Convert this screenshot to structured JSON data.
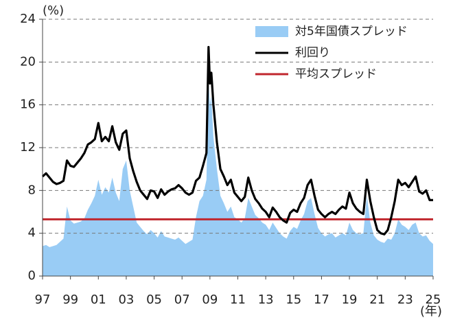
{
  "chart_data": {
    "type": "area_line",
    "y_unit": "(%)",
    "x_unit": "(年)",
    "x": [
      1997,
      1997.25,
      1997.5,
      1997.75,
      1998,
      1998.25,
      1998.5,
      1998.75,
      1999,
      1999.25,
      1999.5,
      1999.75,
      2000,
      2000.25,
      2000.5,
      2000.75,
      2001,
      2001.25,
      2001.5,
      2001.75,
      2002,
      2002.25,
      2002.5,
      2002.75,
      2003,
      2003.25,
      2003.5,
      2003.75,
      2004,
      2004.25,
      2004.5,
      2004.75,
      2005,
      2005.25,
      2005.5,
      2005.75,
      2006,
      2006.25,
      2006.5,
      2006.75,
      2007,
      2007.25,
      2007.5,
      2007.75,
      2008,
      2008.25,
      2008.5,
      2008.75,
      2008.9,
      2009,
      2009.1,
      2009.25,
      2009.5,
      2009.75,
      2010,
      2010.25,
      2010.5,
      2010.75,
      2011,
      2011.25,
      2011.5,
      2011.75,
      2012,
      2012.25,
      2012.5,
      2012.75,
      2013,
      2013.25,
      2013.5,
      2013.75,
      2014,
      2014.25,
      2014.5,
      2014.75,
      2015,
      2015.25,
      2015.5,
      2015.75,
      2016,
      2016.25,
      2016.5,
      2016.75,
      2017,
      2017.25,
      2017.5,
      2017.75,
      2018,
      2018.25,
      2018.5,
      2018.75,
      2019,
      2019.25,
      2019.5,
      2019.75,
      2020,
      2020.25,
      2020.5,
      2020.75,
      2021,
      2021.25,
      2021.5,
      2021.75,
      2022,
      2022.25,
      2022.5,
      2022.75,
      2023,
      2023.25,
      2023.5,
      2023.75,
      2024,
      2024.25,
      2024.5,
      2024.75,
      2025
    ],
    "series": [
      {
        "name": "対5年国債スプレッド",
        "kind": "area",
        "color": "#99ccf5",
        "values": [
          2.8,
          2.9,
          2.7,
          2.8,
          2.9,
          3.2,
          3.5,
          6.5,
          5.2,
          4.9,
          5.0,
          5.1,
          5.4,
          6.2,
          6.8,
          7.5,
          9.0,
          7.6,
          8.3,
          7.8,
          9.2,
          7.8,
          7.0,
          10.0,
          10.8,
          8.0,
          6.5,
          5.0,
          4.6,
          4.2,
          3.9,
          4.3,
          4.0,
          3.6,
          4.2,
          3.7,
          3.6,
          3.5,
          3.4,
          3.6,
          3.3,
          3.0,
          3.2,
          3.4,
          5.5,
          7.0,
          7.5,
          9.0,
          18.1,
          16.0,
          16.8,
          13.0,
          10.0,
          7.5,
          6.8,
          6.0,
          6.5,
          5.5,
          5.3,
          5.0,
          5.4,
          7.3,
          6.5,
          5.7,
          5.4,
          5.0,
          4.8,
          4.3,
          5.0,
          4.5,
          4.0,
          3.7,
          3.5,
          4.2,
          4.6,
          4.4,
          5.2,
          5.8,
          7.0,
          7.3,
          5.8,
          4.5,
          4.0,
          3.7,
          3.9,
          4.0,
          3.6,
          3.8,
          4.0,
          3.8,
          5.0,
          4.3,
          4.0,
          3.9,
          4.0,
          7.5,
          5.0,
          3.8,
          3.4,
          3.2,
          3.1,
          3.5,
          3.4,
          4.0,
          5.3,
          4.8,
          4.6,
          4.3,
          4.8,
          5.0,
          4.0,
          3.7,
          3.8,
          3.3,
          3.0
        ]
      },
      {
        "name": "利回り",
        "kind": "line",
        "color": "#000000",
        "values": [
          9.3,
          9.6,
          9.2,
          8.8,
          8.6,
          8.7,
          8.9,
          10.8,
          10.3,
          10.2,
          10.6,
          11.0,
          11.5,
          12.3,
          12.5,
          12.8,
          14.3,
          12.6,
          13.0,
          12.6,
          14.0,
          12.5,
          11.8,
          13.3,
          13.6,
          11.0,
          9.8,
          8.8,
          8.0,
          7.6,
          7.2,
          8.0,
          7.9,
          7.3,
          8.1,
          7.6,
          7.9,
          8.1,
          8.2,
          8.5,
          8.2,
          7.8,
          7.6,
          7.8,
          8.9,
          9.2,
          10.3,
          11.5,
          21.4,
          18.0,
          19.0,
          16.0,
          12.5,
          10.0,
          9.3,
          8.5,
          9.0,
          7.8,
          7.4,
          7.0,
          7.4,
          9.2,
          8.0,
          7.2,
          6.8,
          6.3,
          6.0,
          5.5,
          6.4,
          6.0,
          5.5,
          5.2,
          5.0,
          5.9,
          6.2,
          6.0,
          6.8,
          7.3,
          8.5,
          9.0,
          7.5,
          6.2,
          5.8,
          5.5,
          5.8,
          6.0,
          5.8,
          6.2,
          6.5,
          6.3,
          7.8,
          6.8,
          6.3,
          6.0,
          5.8,
          9.0,
          7.0,
          5.5,
          4.3,
          4.0,
          3.9,
          4.3,
          5.5,
          7.0,
          9.0,
          8.5,
          8.7,
          8.3,
          8.8,
          9.3,
          7.9,
          7.7,
          8.0,
          7.1,
          7.1
        ]
      }
    ],
    "average": {
      "name": "平均スプレッド",
      "value": 5.3,
      "color": "#c0262d"
    },
    "xlim": [
      1997,
      2025
    ],
    "xticks": [
      {
        "value": 1997,
        "label": "97"
      },
      {
        "value": 1999,
        "label": "99"
      },
      {
        "value": 2001,
        "label": "01"
      },
      {
        "value": 2003,
        "label": "03"
      },
      {
        "value": 2005,
        "label": "05"
      },
      {
        "value": 2007,
        "label": "07"
      },
      {
        "value": 2009,
        "label": "09"
      },
      {
        "value": 2011,
        "label": "11"
      },
      {
        "value": 2013,
        "label": "13"
      },
      {
        "value": 2015,
        "label": "15"
      },
      {
        "value": 2017,
        "label": "17"
      },
      {
        "value": 2019,
        "label": "19"
      },
      {
        "value": 2021,
        "label": "21"
      },
      {
        "value": 2023,
        "label": "23"
      },
      {
        "value": 2025,
        "label": "25"
      }
    ],
    "ylim": [
      0,
      24
    ],
    "yticks": [
      0,
      4,
      8,
      12,
      16,
      20,
      24
    ],
    "grid": true,
    "legend": "upper right"
  }
}
